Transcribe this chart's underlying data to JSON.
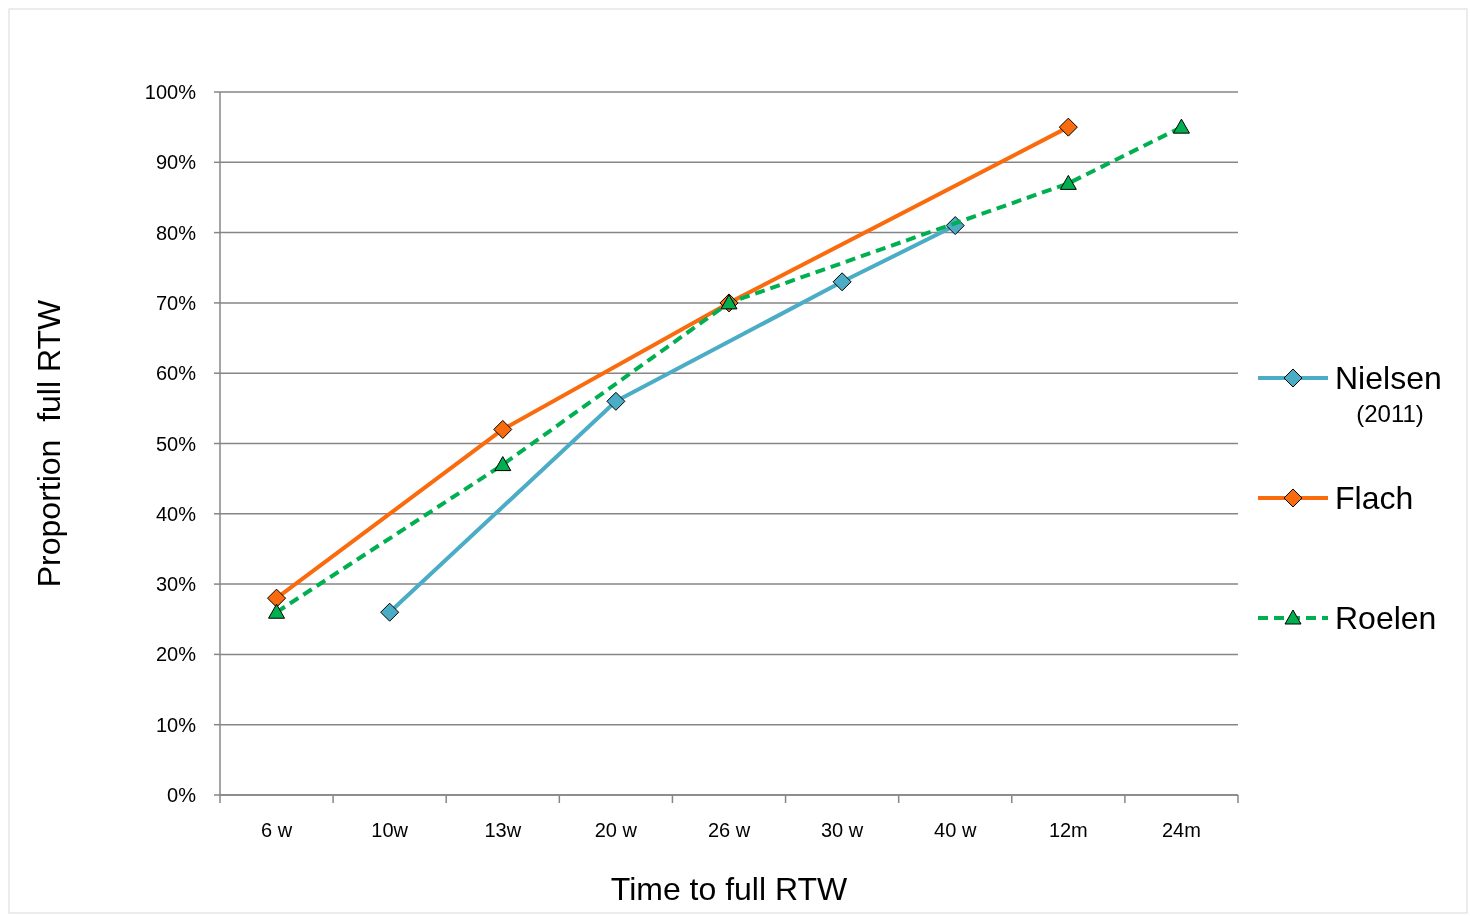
{
  "chart_data": {
    "type": "line",
    "xlabel": "Time to full RTW",
    "ylabel": "Proportion  full RTW",
    "categories": [
      "6 w",
      "10w",
      "13w",
      "20 w",
      "26 w",
      "30 w",
      "40 w",
      "12m",
      "24m"
    ],
    "series": [
      {
        "name": "Nielsen (2011)",
        "color": "#4bacc6",
        "marker": "diamond",
        "line_style": "solid",
        "values": [
          null,
          26,
          null,
          56,
          null,
          73,
          81,
          null,
          null
        ]
      },
      {
        "name": "Flach",
        "color": "#f96b0c",
        "marker": "diamond",
        "line_style": "solid",
        "values": [
          28,
          null,
          52,
          null,
          70,
          null,
          null,
          95,
          null
        ]
      },
      {
        "name": "Roelen",
        "color": "#00b050",
        "marker": "triangle",
        "line_style": "dashed",
        "values": [
          26,
          null,
          47,
          null,
          70,
          null,
          null,
          87,
          95
        ]
      }
    ],
    "ylim": [
      0,
      100
    ],
    "yticks": [
      {
        "value": 0,
        "label": "0%"
      },
      {
        "value": 10,
        "label": "10%"
      },
      {
        "value": 20,
        "label": "20%"
      },
      {
        "value": 30,
        "label": "30%"
      },
      {
        "value": 40,
        "label": "40%"
      },
      {
        "value": 50,
        "label": "50%"
      },
      {
        "value": 60,
        "label": "60%"
      },
      {
        "value": 70,
        "label": "70%"
      },
      {
        "value": 80,
        "label": "80%"
      },
      {
        "value": 90,
        "label": "90%"
      },
      {
        "value": 100,
        "label": "100%"
      }
    ],
    "grid": "y",
    "legend": "right"
  }
}
